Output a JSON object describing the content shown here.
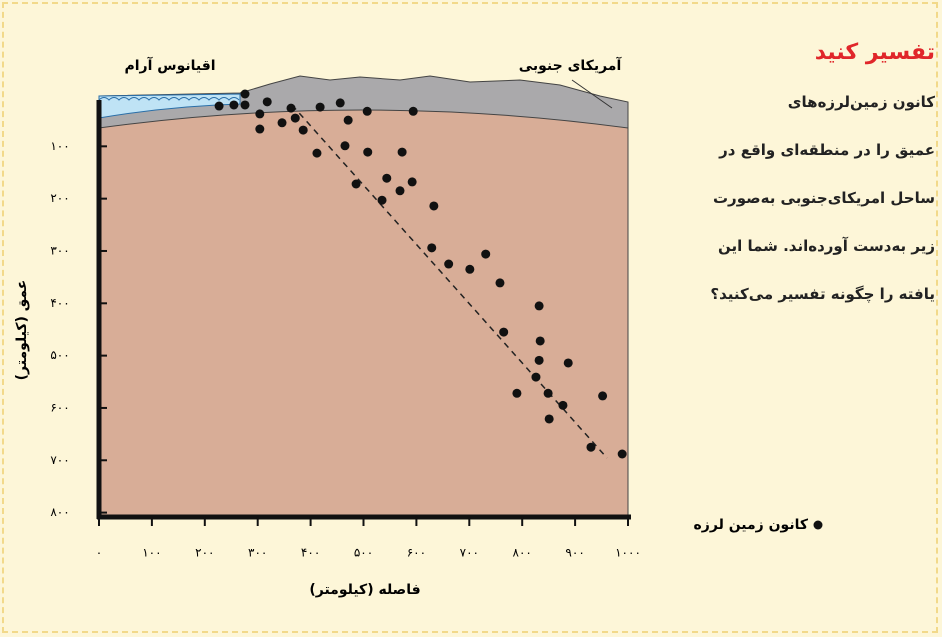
{
  "chart_data": {
    "type": "scatter",
    "x": [
      227,
      255,
      276,
      276,
      318,
      304,
      304,
      346,
      363,
      371,
      386,
      418,
      456,
      412,
      471,
      507,
      465,
      508,
      486,
      544,
      535,
      569,
      594,
      573,
      592,
      633,
      629,
      661,
      701,
      731,
      758,
      765,
      832,
      834,
      832,
      826,
      887,
      790,
      849,
      851,
      877,
      930,
      952,
      989
    ],
    "series": [
      {
        "name": "کانون زمین لرزه",
        "color": "#111111",
        "values": [
          23,
          21,
          21,
          0,
          15,
          38,
          67,
          55,
          27,
          46,
          69,
          25,
          17,
          113,
          50,
          33,
          99,
          111,
          172,
          161,
          203,
          185,
          33,
          111,
          168,
          214,
          294,
          325,
          335,
          306,
          361,
          455,
          405,
          472,
          509,
          541,
          514,
          572,
          572,
          621,
          595,
          675,
          577,
          688
        ]
      }
    ],
    "xlabel": "فاصله (کیلومتر)",
    "ylabel": "عمق (کیلومتر)",
    "annotations": [
      "اقیانوس آرام",
      "آمریکای جنوبی"
    ],
    "xlim": [
      0,
      1000
    ],
    "ylim": [
      0,
      800
    ],
    "xticks": [
      {
        "value": 0,
        "label": "۰"
      },
      {
        "value": 100,
        "label": "۱۰۰"
      },
      {
        "value": 200,
        "label": "۲۰۰"
      },
      {
        "value": 300,
        "label": "۳۰۰"
      },
      {
        "value": 400,
        "label": "۴۰۰"
      },
      {
        "value": 500,
        "label": "۵۰۰"
      },
      {
        "value": 600,
        "label": "۶۰۰"
      },
      {
        "value": 700,
        "label": "۷۰۰"
      },
      {
        "value": 800,
        "label": "۸۰۰"
      },
      {
        "value": 900,
        "label": "۹۰۰"
      },
      {
        "value": 1000,
        "label": "۱۰۰۰"
      }
    ],
    "yticks": [
      {
        "value": 100,
        "label": "۱۰۰"
      },
      {
        "value": 200,
        "label": "۲۰۰"
      },
      {
        "value": 300,
        "label": "۳۰۰"
      },
      {
        "value": 400,
        "label": "۴۰۰"
      },
      {
        "value": 500,
        "label": "۵۰۰"
      },
      {
        "value": 600,
        "label": "۶۰۰"
      },
      {
        "value": 700,
        "label": "۷۰۰"
      },
      {
        "value": 800,
        "label": "۸۰۰"
      }
    ]
  },
  "sidebar": {
    "heading": "تفسیر کنید",
    "lines": [
      "کانون زمین‌لرزه‌های",
      "عمیق را در منطقه‌ای واقع در",
      "ساحل امریکای‌جنوبی به‌صورت",
      "زیر به‌دست آورده‌اند. شما این",
      "یافته را چگونه تفسیر می‌کنید؟"
    ]
  }
}
